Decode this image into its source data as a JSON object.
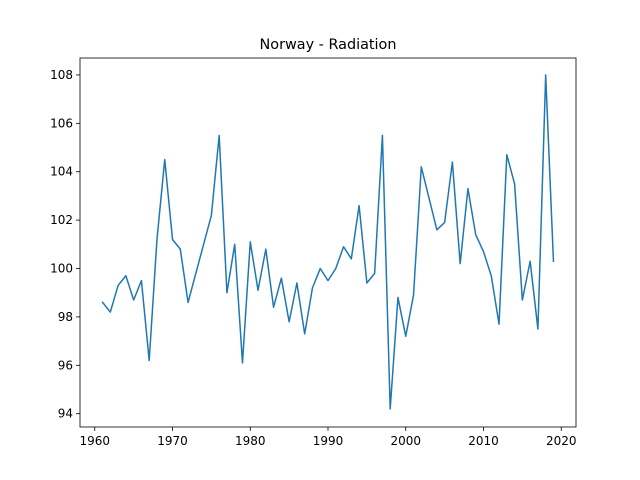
{
  "chart_data": {
    "type": "line",
    "title": "Norway - Radiation",
    "xlabel": "",
    "ylabel": "",
    "xlim": [
      1958.1,
      2021.9
    ],
    "ylim": [
      93.45,
      108.7
    ],
    "xticks": [
      1960,
      1970,
      1980,
      1990,
      2000,
      2010,
      2020
    ],
    "yticks": [
      94,
      96,
      98,
      100,
      102,
      104,
      106,
      108
    ],
    "grid": false,
    "legend": "none",
    "series": [
      {
        "color": "#1f77b4",
        "x": [
          1961,
          1962,
          1963,
          1964,
          1965,
          1966,
          1967,
          1968,
          1969,
          1970,
          1971,
          1972,
          1973,
          1974,
          1975,
          1976,
          1977,
          1978,
          1979,
          1980,
          1981,
          1982,
          1983,
          1984,
          1985,
          1986,
          1987,
          1988,
          1989,
          1990,
          1991,
          1992,
          1993,
          1994,
          1995,
          1996,
          1997,
          1998,
          1999,
          2000,
          2001,
          2002,
          2003,
          2004,
          2005,
          2006,
          2007,
          2008,
          2009,
          2010,
          2011,
          2012,
          2013,
          2014,
          2015,
          2016,
          2017,
          2018,
          2019
        ],
        "y": [
          98.6,
          98.2,
          99.3,
          99.7,
          98.7,
          99.5,
          96.2,
          101.2,
          104.5,
          101.2,
          100.8,
          98.6,
          99.8,
          101.0,
          102.2,
          105.5,
          99.0,
          101.0,
          96.1,
          101.1,
          99.1,
          100.8,
          98.4,
          99.6,
          97.8,
          99.4,
          97.3,
          99.2,
          100.0,
          99.5,
          100.0,
          100.9,
          100.4,
          102.6,
          99.4,
          99.8,
          105.5,
          94.2,
          98.8,
          97.2,
          98.9,
          104.2,
          102.9,
          101.6,
          101.9,
          104.4,
          100.2,
          103.3,
          101.4,
          100.7,
          99.7,
          97.7,
          104.7,
          103.5,
          98.7,
          100.3,
          97.5,
          108.0,
          100.3
        ]
      }
    ]
  }
}
